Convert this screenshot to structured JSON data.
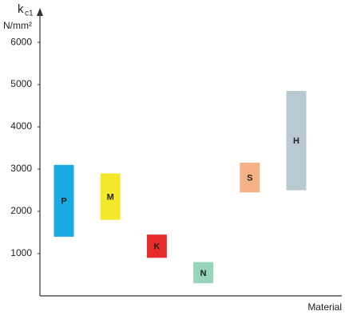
{
  "chart_data": {
    "type": "range-bar",
    "ylabel": "k",
    "ylabel_subscript": "c1",
    "yunit": "N/mm²",
    "xlabel": "Material",
    "categories": [
      "P",
      "M",
      "K",
      "N",
      "S",
      "H"
    ],
    "low": [
      1400,
      1800,
      900,
      300,
      2450,
      2500
    ],
    "high": [
      3100,
      2900,
      1450,
      800,
      3150,
      4850
    ],
    "colors": [
      "#1ba9e1",
      "#f5e82a",
      "#e52b2b",
      "#97d4bc",
      "#f4b183",
      "#b8c9d1"
    ],
    "ylim": [
      0,
      6700
    ],
    "yticks": [
      1000,
      2000,
      3000,
      4000,
      5000,
      6000
    ],
    "grid": false
  }
}
